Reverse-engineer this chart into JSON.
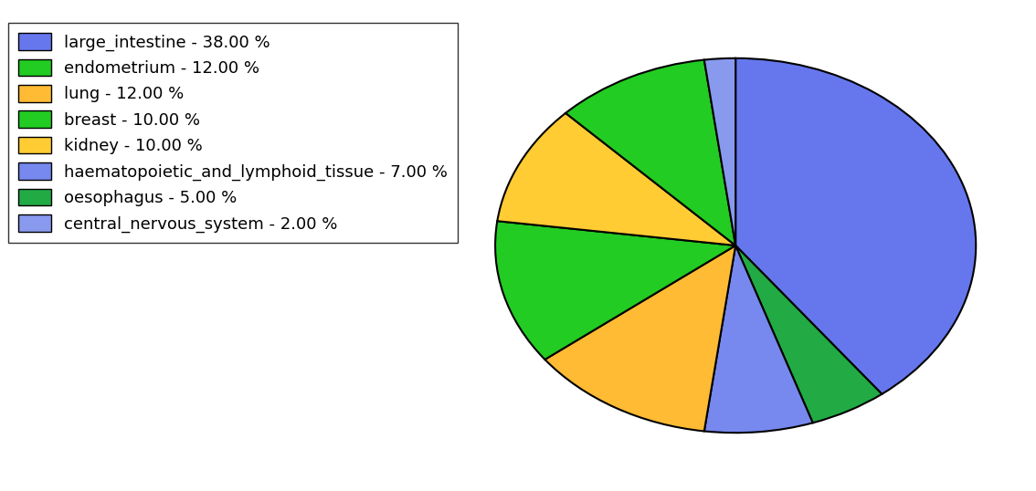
{
  "labels": [
    "large_intestine - 38.00 %",
    "endometrium - 12.00 %",
    "lung - 12.00 %",
    "breast - 10.00 %",
    "kidney - 10.00 %",
    "haematopoietic_and_lymphoid_tissue - 7.00 %",
    "oesophagus - 5.00 %",
    "central_nervous_system - 2.00 %"
  ],
  "sizes_ordered": [
    38,
    5,
    7,
    12,
    12,
    10,
    10,
    2
  ],
  "colors_ordered": [
    "#6677ee",
    "#22aa44",
    "#7788ee",
    "#ffbb33",
    "#22cc22",
    "#ffcc33",
    "#22cc22",
    "#8899ee"
  ],
  "legend_colors": [
    "#6677ee",
    "#22cc22",
    "#ffbb33",
    "#22cc22",
    "#ffcc33",
    "#7788ee",
    "#22aa44",
    "#8899ee"
  ],
  "startangle": 90,
  "figsize": [
    11.34,
    5.38
  ],
  "dpi": 100,
  "legend_fontsize": 13,
  "edgecolor": "black",
  "linewidth": 1.5,
  "aspect": 0.78
}
